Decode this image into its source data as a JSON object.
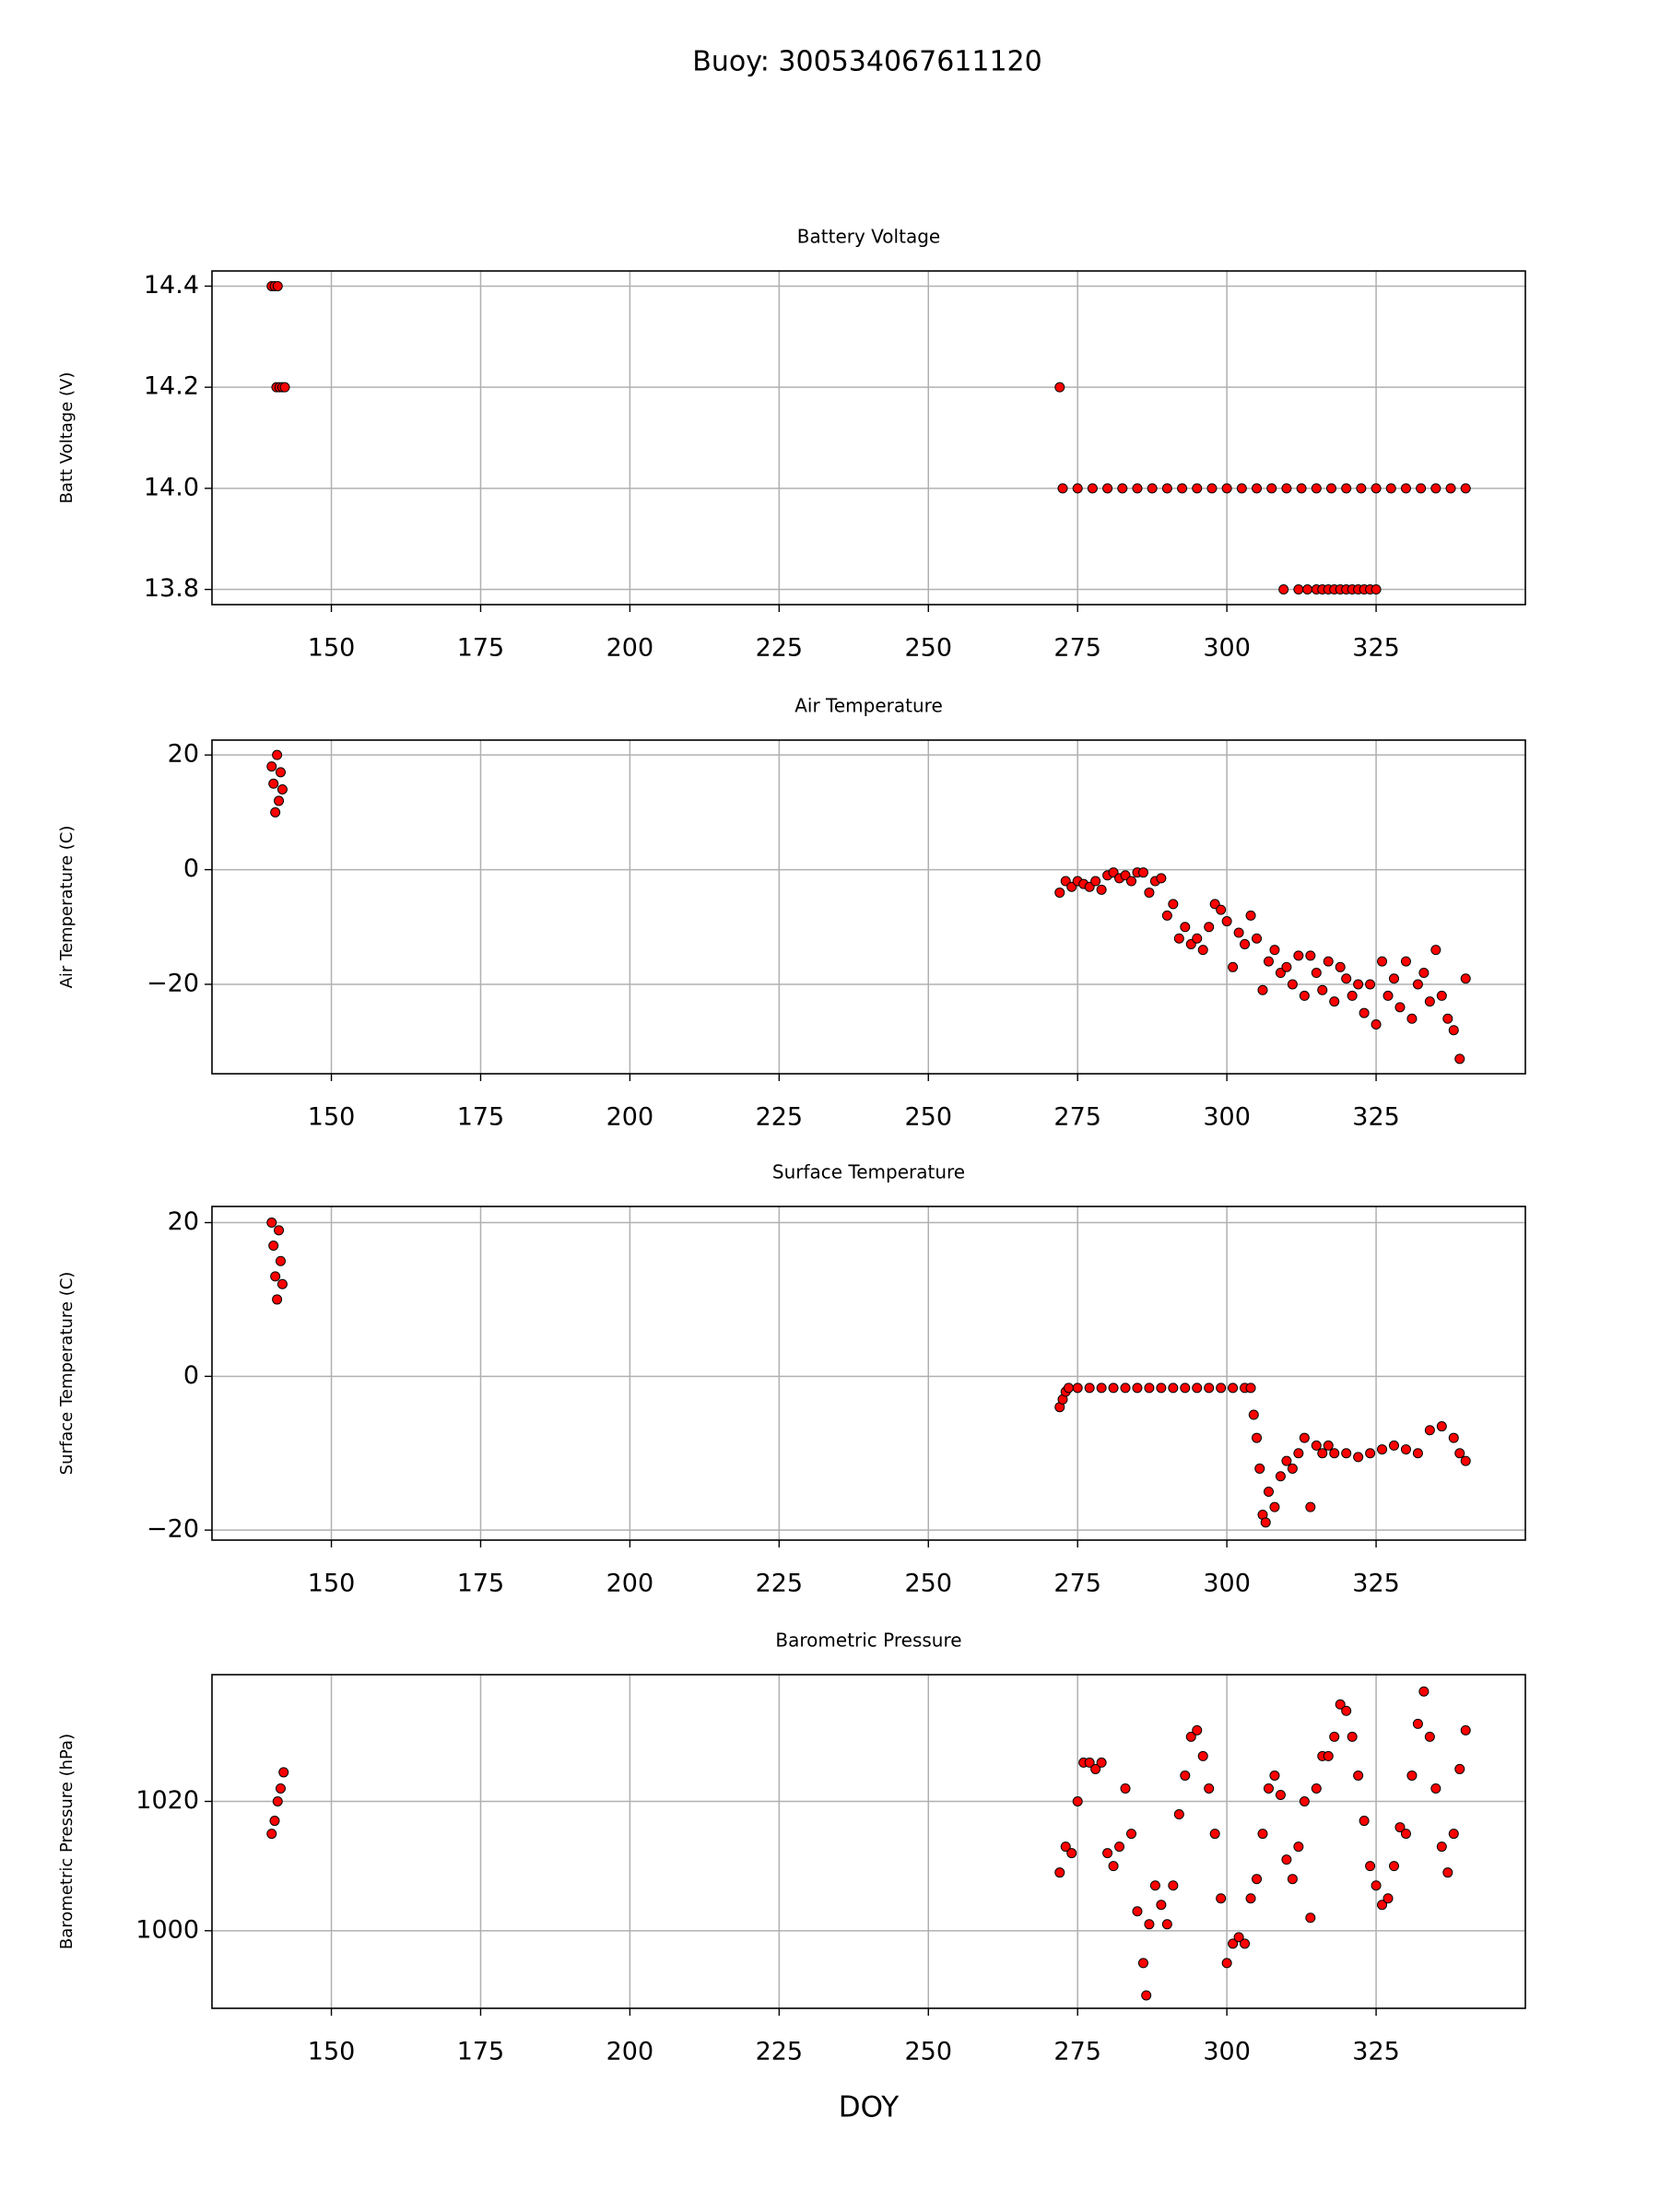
{
  "title": "Buoy: 300534067611120",
  "chart_data": [
    {
      "type": "scatter",
      "title": "Battery Voltage",
      "ylabel": "Batt Voltage (V)",
      "color": "#ff0000",
      "grid": true,
      "xlim": [
        130,
        350
      ],
      "ylim": [
        13.77,
        14.43
      ],
      "xticks": [
        150,
        175,
        200,
        225,
        250,
        275,
        300,
        325
      ],
      "yticks": [
        13.8,
        {
          "value": 14,
          "label": "14.0"
        },
        14.2,
        14.4
      ],
      "x": [
        140,
        140.5,
        141,
        140.8,
        141.3,
        141.8,
        142.2,
        272,
        272.5,
        275,
        277.5,
        280,
        282.5,
        285,
        287.5,
        290,
        292.5,
        295,
        297.5,
        300,
        302.5,
        305,
        307.5,
        310,
        312.5,
        315,
        317.5,
        320,
        322.5,
        325,
        327.5,
        330,
        332.5,
        335,
        337.5,
        340,
        309.5,
        312,
        313.5,
        315,
        316,
        317,
        318,
        319,
        320,
        321,
        322,
        323,
        324,
        325
      ],
      "values": [
        14.4,
        14.4,
        14.4,
        14.2,
        14.2,
        14.2,
        14.2,
        14.2,
        14,
        14,
        14,
        14,
        14,
        14,
        14,
        14,
        14,
        14,
        14,
        14,
        14,
        14,
        14,
        14,
        14,
        14,
        14,
        14,
        14,
        14,
        14,
        14,
        14,
        14,
        14,
        14,
        13.8,
        13.8,
        13.8,
        13.8,
        13.8,
        13.8,
        13.8,
        13.8,
        13.8,
        13.8,
        13.8,
        13.8,
        13.8,
        13.8
      ]
    },
    {
      "type": "scatter",
      "title": "Air Temperature",
      "ylabel": "Air Temperature (C)",
      "color": "#ff0000",
      "grid": true,
      "xlim": [
        130,
        350
      ],
      "ylim": [
        -35.6,
        22.6
      ],
      "xticks": [
        150,
        175,
        200,
        225,
        250,
        275,
        300,
        325
      ],
      "yticks": [
        {
          "value": -20,
          "label": "−20"
        },
        0,
        20
      ],
      "x": [
        140,
        140.3,
        140.6,
        140.9,
        141.2,
        141.5,
        141.8,
        272,
        273,
        274,
        275,
        276,
        277,
        278,
        279,
        280,
        281,
        282,
        283,
        284,
        285,
        286,
        287,
        288,
        289,
        290,
        291,
        292,
        293,
        294,
        295,
        296,
        297,
        298,
        299,
        300,
        301,
        302,
        303,
        304,
        305,
        306,
        307,
        308,
        309,
        310,
        311,
        312,
        313,
        314,
        315,
        316,
        317,
        318,
        319,
        320,
        321,
        322,
        323,
        324,
        325,
        326,
        327,
        328,
        329,
        330,
        331,
        332,
        333,
        334,
        335,
        336,
        337,
        338,
        339,
        340
      ],
      "values": [
        18,
        15,
        10,
        20,
        12,
        17,
        14,
        -4,
        -2,
        -3,
        -2,
        -2.5,
        -3,
        -2,
        -3.5,
        -1,
        -0.5,
        -1.5,
        -1,
        -2,
        -0.5,
        -0.5,
        -4,
        -2,
        -1.5,
        -8,
        -6,
        -12,
        -10,
        -13,
        -12,
        -14,
        -10,
        -6,
        -7,
        -9,
        -17,
        -11,
        -13,
        -8,
        -12,
        -21,
        -16,
        -14,
        -18,
        -17,
        -20,
        -15,
        -22,
        -15,
        -18,
        -21,
        -16,
        -23,
        -17,
        -19,
        -22,
        -20,
        -25,
        -20,
        -27,
        -16,
        -22,
        -19,
        -24,
        -16,
        -26,
        -20,
        -18,
        -23,
        -14,
        -22,
        -26,
        -28,
        -33,
        -19
      ]
    },
    {
      "type": "scatter",
      "title": "Surface Temperature",
      "ylabel": "Surface Temperature (C)",
      "color": "#ff0000",
      "grid": true,
      "xlim": [
        130,
        350
      ],
      "ylim": [
        -21.3,
        22.1
      ],
      "xticks": [
        150,
        175,
        200,
        225,
        250,
        275,
        300,
        325
      ],
      "yticks": [
        {
          "value": -20,
          "label": "−20"
        },
        0,
        20
      ],
      "x": [
        140,
        140.3,
        140.6,
        140.9,
        141.2,
        141.5,
        141.8,
        272,
        272.5,
        273,
        273.5,
        275,
        277,
        279,
        281,
        283,
        285,
        287,
        289,
        291,
        293,
        295,
        297,
        299,
        301,
        303,
        304,
        304.5,
        305,
        305.5,
        306,
        306.5,
        307,
        308,
        309,
        310,
        311,
        312,
        313,
        314,
        315,
        316,
        317,
        318,
        320,
        322,
        324,
        326,
        328,
        330,
        332,
        334,
        336,
        338,
        339,
        340
      ],
      "values": [
        20,
        17,
        13,
        10,
        19,
        15,
        12,
        -4,
        -3,
        -2,
        -1.5,
        -1.5,
        -1.5,
        -1.5,
        -1.5,
        -1.5,
        -1.5,
        -1.5,
        -1.5,
        -1.5,
        -1.5,
        -1.5,
        -1.5,
        -1.5,
        -1.5,
        -1.5,
        -1.5,
        -5,
        -8,
        -12,
        -18,
        -19,
        -15,
        -17,
        -13,
        -11,
        -12,
        -10,
        -8,
        -17,
        -9,
        -10,
        -9,
        -10,
        -10,
        -10.5,
        -10,
        -9.5,
        -9,
        -9.5,
        -10,
        -7,
        -6.5,
        -8,
        -10,
        -11
      ]
    },
    {
      "type": "scatter",
      "title": "Barometric Pressure",
      "ylabel": "Barometric Pressure (hPa)",
      "xlabel": "DOY",
      "color": "#ff0000",
      "grid": true,
      "xlim": [
        130,
        350
      ],
      "ylim": [
        988,
        1039.6
      ],
      "xticks": [
        150,
        175,
        200,
        225,
        250,
        275,
        300,
        325
      ],
      "yticks": [
        1000,
        1020
      ],
      "x": [
        140,
        140.5,
        141,
        141.5,
        142,
        272,
        273,
        274,
        275,
        276,
        277,
        278,
        279,
        280,
        281,
        282,
        283,
        284,
        285,
        286,
        286.5,
        287,
        288,
        289,
        290,
        291,
        292,
        293,
        294,
        295,
        296,
        297,
        298,
        299,
        300,
        301,
        302,
        303,
        304,
        305,
        306,
        307,
        308,
        309,
        310,
        311,
        312,
        313,
        314,
        315,
        316,
        317,
        318,
        319,
        320,
        321,
        322,
        323,
        324,
        325,
        326,
        327,
        328,
        329,
        330,
        331,
        332,
        333,
        334,
        335,
        336,
        337,
        338,
        339,
        340
      ],
      "values": [
        1015,
        1017,
        1020,
        1022,
        1024.5,
        1009,
        1013,
        1012,
        1020,
        1026,
        1026,
        1025,
        1026,
        1012,
        1010,
        1013,
        1022,
        1015,
        1003,
        995,
        990,
        1001,
        1007,
        1004,
        1001,
        1007,
        1018,
        1024,
        1030,
        1031,
        1027,
        1022,
        1015,
        1005,
        995,
        998,
        999,
        998,
        1005,
        1008,
        1015,
        1022,
        1024,
        1021,
        1011,
        1008,
        1013,
        1020,
        1002,
        1022,
        1027,
        1027,
        1030,
        1035,
        1034,
        1030,
        1024,
        1017,
        1010,
        1007,
        1004,
        1005,
        1010,
        1016,
        1015,
        1024,
        1032,
        1037,
        1030,
        1022,
        1013,
        1009,
        1015,
        1025,
        1031
      ]
    }
  ]
}
